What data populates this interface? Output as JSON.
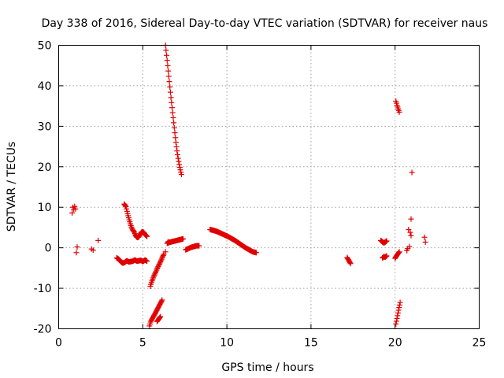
{
  "chart_data": {
    "type": "scatter",
    "title": "Day 338 of 2016, Sidereal Day-to-day VTEC variation (SDTVAR) for receiver naus",
    "xlabel": "GPS time / hours",
    "ylabel": "SDTVAR / TECUs",
    "xlim": [
      0,
      25
    ],
    "ylim": [
      -20,
      50
    ],
    "xticks": [
      0,
      5,
      10,
      15,
      20,
      25
    ],
    "yticks": [
      -20,
      -10,
      0,
      10,
      20,
      30,
      40,
      50
    ],
    "xtick_labels": [
      "0",
      "5",
      "10",
      "15",
      "20",
      "25"
    ],
    "ytick_labels": [
      "-20",
      "-10",
      "0",
      "10",
      "20",
      "30",
      "40",
      "50"
    ],
    "grid": true,
    "marker": "+",
    "marker_color": "#e00000",
    "segments": [
      {
        "name": "a1",
        "x": [
          0.8,
          0.85,
          0.9,
          0.95,
          1.0
        ],
        "y": [
          8.6,
          10.0,
          9.5,
          10.2,
          9.6
        ]
      },
      {
        "name": "a2",
        "x": [
          1.05,
          1.1
        ],
        "y": [
          -1.2,
          0.2
        ]
      },
      {
        "name": "a3",
        "x": [
          1.95,
          2.05
        ],
        "y": [
          -0.3,
          -0.6
        ]
      },
      {
        "name": "a4",
        "x": [
          2.35
        ],
        "y": [
          1.8
        ]
      },
      {
        "name": "b1",
        "x_start": 3.45,
        "x_end": 5.25,
        "y": [
          -2.5,
          -2.8,
          -3.4,
          -3.8,
          -3.6,
          -3.2,
          -3.5,
          -3.4,
          -3.3,
          -3.0,
          -3.3,
          -3.2,
          -3.1,
          -3.4,
          -3.0,
          -3.3
        ]
      },
      {
        "name": "b2",
        "x_start": 3.9,
        "x_end": 5.25,
        "y": [
          10.8,
          10.2,
          8.5,
          7.0,
          5.6,
          4.5,
          4.0,
          3.0,
          2.5,
          2.7,
          3.5,
          4.0,
          3.8,
          3.2,
          2.8
        ]
      },
      {
        "name": "c1",
        "x_start": 5.45,
        "x_end": 6.25,
        "y": [
          -9.5,
          -8.4,
          -7.5,
          -6.7,
          -6.0,
          -5.2,
          -4.5,
          -3.8,
          -3.1,
          -2.3,
          -1.6
        ]
      },
      {
        "name": "c2",
        "x_start": 5.4,
        "x_end": 6.15,
        "y": [
          -19.3,
          -18.2,
          -17.6,
          -17.0,
          -16.5,
          -15.9,
          -15.3,
          -14.7,
          -14.1,
          -13.5,
          -12.9
        ]
      },
      {
        "name": "c3",
        "x_start": 5.85,
        "x_end": 6.05,
        "y": [
          -18.2,
          -17.6,
          -17.0
        ]
      },
      {
        "name": "c4",
        "x": [
          6.35,
          6.5
        ],
        "y": [
          -1.0,
          1.5
        ]
      },
      {
        "name": "d1",
        "x_start": 6.35,
        "x_end": 7.3,
        "y": [
          50.0,
          48.2,
          46.4,
          44.5,
          42.6,
          40.7,
          38.8,
          36.9,
          35.1,
          33.3,
          31.5,
          29.7,
          27.9,
          26.2,
          24.6,
          23.2,
          21.9,
          20.8,
          19.8,
          18.9,
          18.1
        ]
      },
      {
        "name": "e1",
        "x_start": 6.45,
        "x_end": 7.4,
        "y": [
          1.1,
          1.3,
          1.4,
          1.5,
          1.6,
          1.7,
          1.8,
          1.9,
          2.0,
          2.1,
          2.2
        ]
      },
      {
        "name": "f1",
        "x_start": 7.55,
        "x_end": 8.35,
        "y": [
          -0.5,
          -0.2,
          0.1,
          0.3,
          0.5,
          0.5
        ]
      },
      {
        "name": "g1",
        "x_start": 9.0,
        "x_end": 11.75,
        "y": [
          4.5,
          4.3,
          4.0,
          3.6,
          3.2,
          2.8,
          2.3,
          1.8,
          1.2,
          0.6,
          0.0,
          -0.5,
          -1.0,
          -1.2
        ]
      },
      {
        "name": "h1",
        "x_start": 17.15,
        "x_end": 17.35,
        "y": [
          -2.4,
          -2.9,
          -3.4,
          -3.9
        ]
      },
      {
        "name": "i1",
        "x_start": 19.15,
        "x_end": 19.5,
        "y": [
          1.8,
          1.5,
          1.2,
          1.4,
          1.7
        ]
      },
      {
        "name": "i2",
        "x_start": 19.25,
        "x_end": 19.5,
        "y": [
          -2.5,
          -2.2,
          -2.3,
          -2.0
        ]
      },
      {
        "name": "j1",
        "x_start": 20.05,
        "x_end": 20.25,
        "y": [
          36.2,
          35.2,
          34.3,
          33.5
        ]
      },
      {
        "name": "j2",
        "x_start": 20.0,
        "x_end": 20.25,
        "y": [
          -2.6,
          -2.0,
          -1.5,
          -1.0
        ]
      },
      {
        "name": "j3",
        "x_start": 20.05,
        "x_end": 20.3,
        "y": [
          -18.8,
          -17.0,
          -15.2,
          -13.5
        ]
      },
      {
        "name": "k1",
        "x": [
          20.7,
          20.75,
          20.85
        ],
        "y": [
          -0.7,
          -0.2,
          0.3
        ]
      },
      {
        "name": "k2",
        "x": [
          20.8,
          20.9,
          20.95
        ],
        "y": [
          4.5,
          3.8,
          3.0
        ]
      },
      {
        "name": "k3",
        "x": [
          20.95,
          21.0
        ],
        "y": [
          7.1,
          18.6
        ]
      },
      {
        "name": "l1",
        "x": [
          21.75,
          21.8
        ],
        "y": [
          2.6,
          1.4
        ]
      }
    ]
  }
}
